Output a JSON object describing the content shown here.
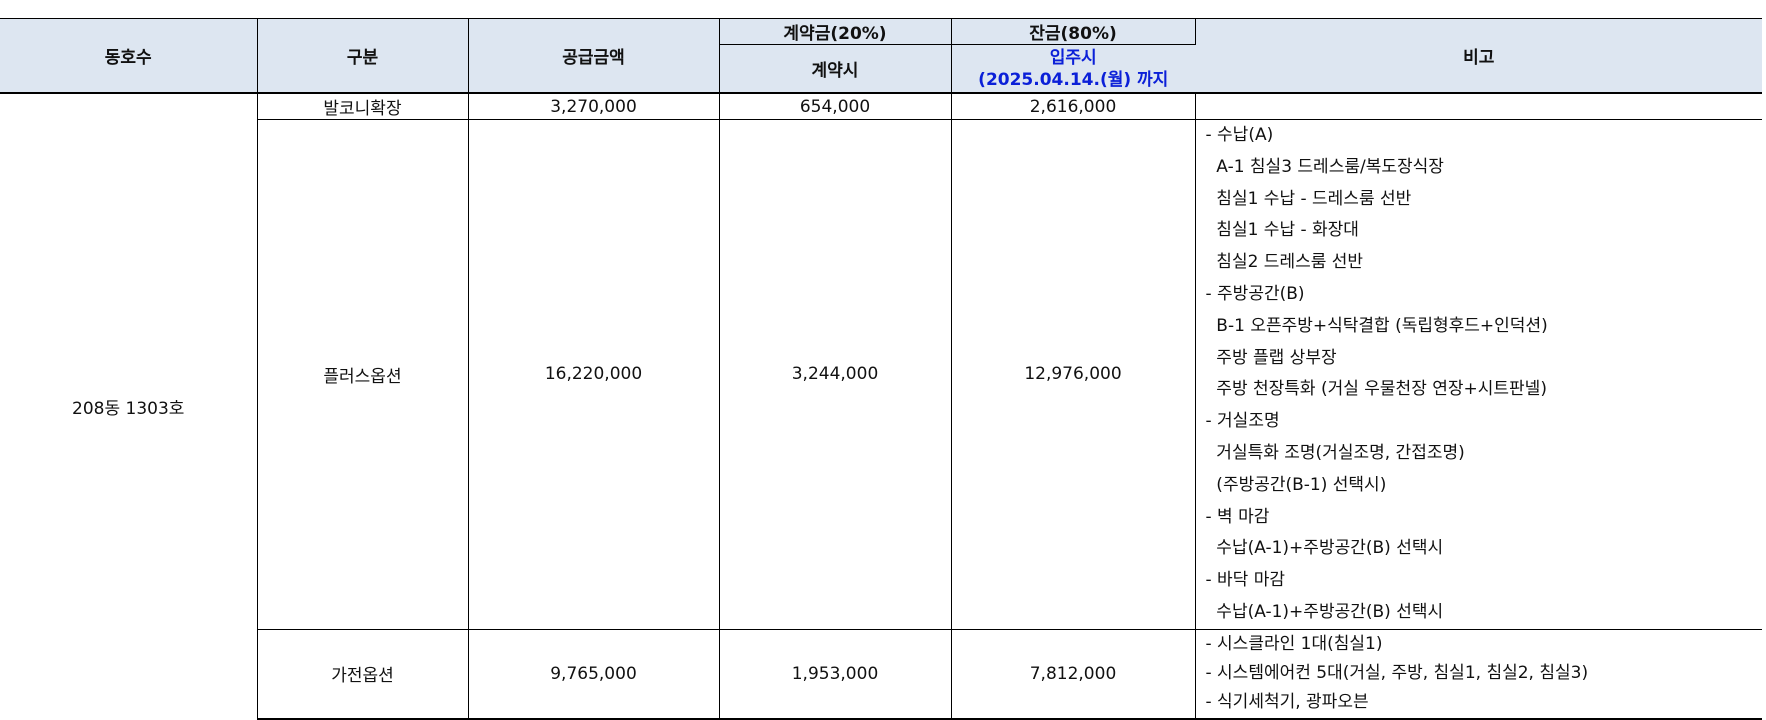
{
  "headers": {
    "unit": "동호수",
    "category": "구분",
    "supply_amount": "공급금액",
    "deposit": "계약금(20%)",
    "deposit_sub": "계약시",
    "balance": "잔금(80%)",
    "balance_sub_1": "입주시",
    "balance_sub_2": "(2025.04.14.(월) 까지",
    "remarks": "비고"
  },
  "unit": "208동 1303호",
  "colors": {
    "header_bg": "#dde6f1",
    "highlight_text": "#0b20d8"
  },
  "rows": [
    {
      "category": "발코니확장",
      "supply": "3,270,000",
      "deposit": "654,000",
      "balance": "2,616,000",
      "notes": []
    },
    {
      "category": "플러스옵션",
      "supply": "16,220,000",
      "deposit": "3,244,000",
      "balance": "12,976,000",
      "notes": [
        "- 수납(A)",
        "  A-1 침실3 드레스룸/복도장식장",
        "  침실1 수납 - 드레스룸 선반",
        "  침실1 수납 - 화장대",
        "  침실2 드레스룸 선반",
        "- 주방공간(B)",
        "  B-1 오픈주방+식탁결합 (독립형후드+인덕션)",
        "  주방 플랩 상부장",
        "  주방 천장특화 (거실 우물천장 연장+시트판넬)",
        "- 거실조명",
        "  거실특화 조명(거실조명, 간접조명)",
        "  (주방공간(B-1) 선택시)",
        "- 벽 마감",
        "  수납(A-1)+주방공간(B) 선택시",
        "- 바닥 마감",
        "  수납(A-1)+주방공간(B) 선택시"
      ]
    },
    {
      "category": "가전옵션",
      "supply": "9,765,000",
      "deposit": "1,953,000",
      "balance": "7,812,000",
      "notes": [
        "- 시스클라인 1대(침실1)",
        "- 시스템에어컨 5대(거실, 주방, 침실1, 침실2, 침실3)",
        "- 식기세척기, 광파오븐"
      ]
    }
  ]
}
